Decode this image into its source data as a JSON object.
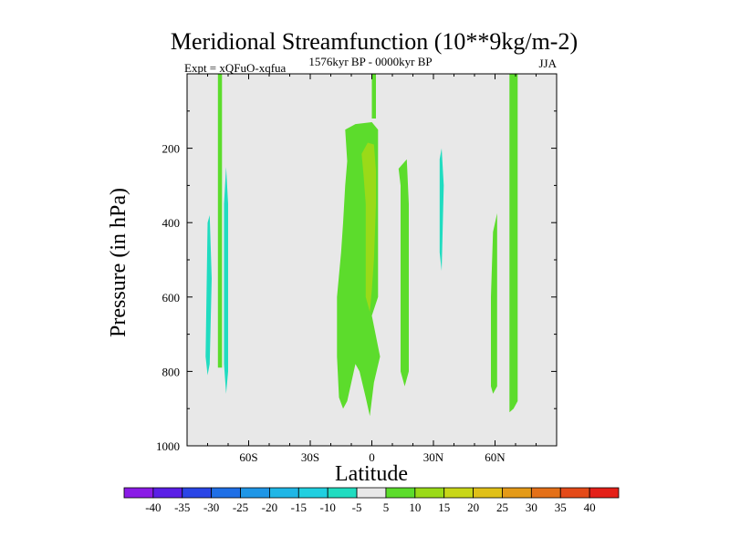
{
  "chart_data": {
    "type": "heatmap",
    "title": "Meridional Streamfunction (10**9kg/m-2)",
    "left_subtitle": "Expt = xQFuO-xqfua",
    "center_subtitle": "1576kyr BP - 0000kyr BP",
    "right_subtitle": "JJA",
    "xlabel": "Latitude",
    "ylabel": "Pressure (in hPa)",
    "xlim": [
      -90,
      90
    ],
    "ylim": [
      1000,
      0
    ],
    "x_ticks": [
      {
        "value": -60,
        "label": "60S"
      },
      {
        "value": -30,
        "label": "30S"
      },
      {
        "value": 0,
        "label": "0"
      },
      {
        "value": 30,
        "label": "30N"
      },
      {
        "value": 60,
        "label": "60N"
      }
    ],
    "y_ticks": [
      {
        "value": 200,
        "label": "200"
      },
      {
        "value": 400,
        "label": "400"
      },
      {
        "value": 600,
        "label": "600"
      },
      {
        "value": 800,
        "label": "800"
      },
      {
        "value": 1000,
        "label": "1000"
      }
    ],
    "background_color": "#e8e8e8",
    "colorbar": {
      "labels": [
        "-40",
        "-35",
        "-30",
        "-25",
        "-20",
        "-15",
        "-10",
        "-5",
        "5",
        "10",
        "15",
        "20",
        "25",
        "30",
        "35",
        "40"
      ],
      "colors": [
        "#8a1be6",
        "#5a1ee6",
        "#2a45e6",
        "#1f6fe6",
        "#1f96e6",
        "#1fb6e6",
        "#20cfe0",
        "#20dcc0",
        "#e8e8e8",
        "#5cdc2c",
        "#9ada18",
        "#c8d618",
        "#e0c018",
        "#e49a18",
        "#e47018",
        "#e44a18",
        "#e42018"
      ]
    },
    "regions": [
      {
        "label": "5 to 10",
        "color": "#5cdc2c",
        "points": [
          [
            -12,
            235
          ],
          [
            -13,
            150
          ],
          [
            -8,
            135
          ],
          [
            0,
            130
          ],
          [
            3,
            150
          ],
          [
            3,
            600
          ],
          [
            0,
            650
          ],
          [
            4,
            760
          ],
          [
            1,
            830
          ],
          [
            -1,
            920
          ],
          [
            -3,
            870
          ],
          [
            -6,
            800
          ],
          [
            -8,
            780
          ],
          [
            -12,
            880
          ],
          [
            -14,
            900
          ],
          [
            -16,
            870
          ],
          [
            -17,
            760
          ],
          [
            -17,
            600
          ],
          [
            -15,
            480
          ],
          [
            -14,
            400
          ],
          [
            -13,
            300
          ]
        ]
      },
      {
        "label": "10 to 15",
        "color": "#9ada18",
        "points": [
          [
            -5,
            215
          ],
          [
            -2,
            185
          ],
          [
            1,
            190
          ],
          [
            2,
            260
          ],
          [
            2,
            350
          ],
          [
            1,
            500
          ],
          [
            0,
            580
          ],
          [
            -1,
            640
          ],
          [
            -3,
            600
          ],
          [
            -3,
            450
          ],
          [
            -3,
            350
          ],
          [
            -4,
            275
          ]
        ]
      },
      {
        "label": "5 to 10",
        "color": "#5cdc2c",
        "points": [
          [
            0,
            0
          ],
          [
            2,
            0
          ],
          [
            2,
            120
          ],
          [
            0,
            120
          ]
        ]
      },
      {
        "label": "5 to 10",
        "color": "#5cdc2c",
        "points": [
          [
            13,
            255
          ],
          [
            17,
            230
          ],
          [
            18,
            350
          ],
          [
            18,
            800
          ],
          [
            16,
            840
          ],
          [
            14,
            800
          ],
          [
            14,
            500
          ],
          [
            14,
            300
          ]
        ]
      },
      {
        "label": "5 to 10",
        "color": "#5cdc2c",
        "points": [
          [
            59,
            425
          ],
          [
            61,
            375
          ],
          [
            61,
            840
          ],
          [
            59,
            860
          ],
          [
            58,
            840
          ],
          [
            58,
            600
          ]
        ]
      },
      {
        "label": "5 to 10",
        "color": "#5cdc2c",
        "points": [
          [
            67,
            0
          ],
          [
            71,
            0
          ],
          [
            71,
            880
          ],
          [
            69,
            900
          ],
          [
            67,
            910
          ],
          [
            67,
            600
          ]
        ]
      },
      {
        "label": "-10 to -5",
        "color": "#20dcc0",
        "points": [
          [
            -80,
            400
          ],
          [
            -79,
            380
          ],
          [
            -78,
            550
          ],
          [
            -79,
            780
          ],
          [
            -80,
            810
          ],
          [
            -81,
            760
          ]
        ]
      },
      {
        "label": "-10 to -5",
        "color": "#20dcc0",
        "points": [
          [
            -72,
            350
          ],
          [
            -71,
            250
          ],
          [
            -70,
            350
          ],
          [
            -70,
            800
          ],
          [
            -71,
            860
          ],
          [
            -72,
            780
          ]
        ]
      },
      {
        "label": "-10 to -5",
        "color": "#20dcc0",
        "points": [
          [
            33,
            230
          ],
          [
            34,
            200
          ],
          [
            35,
            300
          ],
          [
            34,
            530
          ],
          [
            33,
            480
          ],
          [
            33,
            350
          ]
        ]
      },
      {
        "label": "5 to 10",
        "color": "#5cdc2c",
        "points": [
          [
            -75,
            0
          ],
          [
            -73,
            0
          ],
          [
            -73,
            790
          ],
          [
            -75,
            790
          ]
        ]
      }
    ]
  }
}
